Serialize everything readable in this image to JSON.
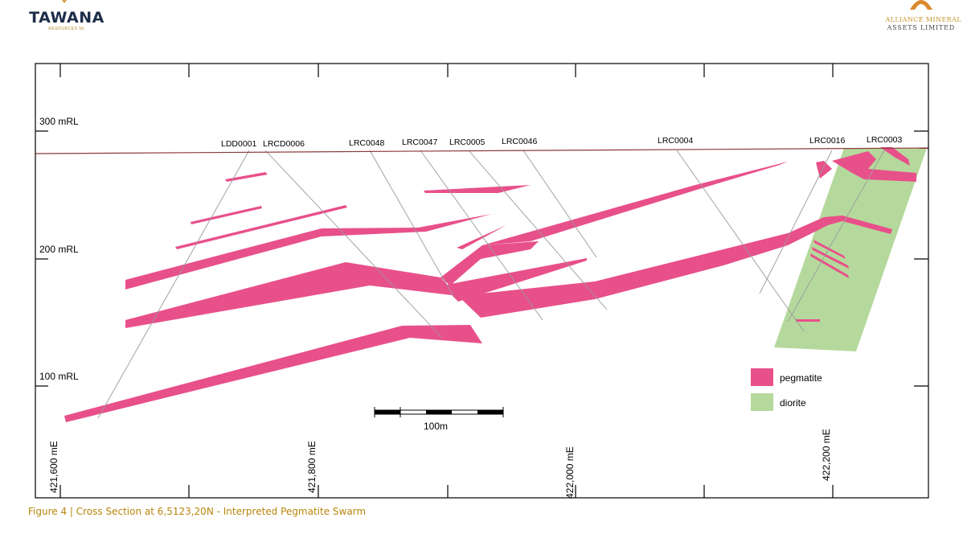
{
  "header": {
    "left_logo": {
      "name": "TAWANA",
      "tagline": "RESOURCES NL"
    },
    "right_logo": {
      "line1": "ALLIANCE MINERAL",
      "line2": "ASSETS LIMITED"
    }
  },
  "section": {
    "rl_labels": [
      "300 mRL",
      "200 mRL",
      "100 mRL"
    ],
    "easting_labels": [
      "421,600 mE",
      "421,800 mE",
      "422,000 mE",
      "422,200 mE"
    ],
    "drillholes": [
      "LDD0001",
      "LRCD0006",
      "LRC0048",
      "LRC0047",
      "LRC0005",
      "LRC0046",
      "LRC0004",
      "LRC0016",
      "LRC0003"
    ],
    "scale_bar_label": "100m",
    "legend": [
      {
        "label": "pegmatite",
        "color": "#e8508a"
      },
      {
        "label": "diorite",
        "color": "#b5d99c"
      }
    ],
    "colors": {
      "pegmatite": "#e8508a",
      "diorite": "#b5d99c",
      "topography": "#8b3a3a",
      "drill_trace": "#9a9a9a"
    }
  },
  "caption": "Figure 4 | Cross Section at 6,5123,20N -  Interpreted Pegmatite Swarm"
}
